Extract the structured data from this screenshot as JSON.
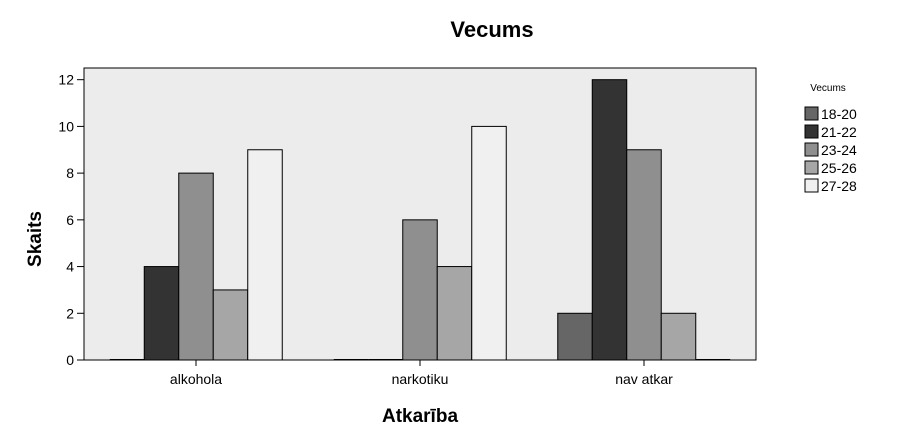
{
  "chart_data": {
    "type": "bar",
    "title": "Vecums",
    "xlabel": "Atkarība",
    "ylabel": "Skaits",
    "categories": [
      "alkohola",
      "narkotiku",
      "nav atkar"
    ],
    "series": [
      {
        "name": "18-20",
        "values": [
          0,
          0,
          2
        ],
        "color": "#666666"
      },
      {
        "name": "21-22",
        "values": [
          4,
          0,
          12
        ],
        "color": "#333333"
      },
      {
        "name": "23-24",
        "values": [
          8,
          6,
          9
        ],
        "color": "#8f8f8f"
      },
      {
        "name": "25-26",
        "values": [
          3,
          4,
          2
        ],
        "color": "#a6a6a6"
      },
      {
        "name": "27-28",
        "values": [
          9,
          10,
          0
        ],
        "color": "#f0f0f0"
      }
    ],
    "ylim": [
      0,
      12.5
    ],
    "yticks": [
      0,
      2,
      4,
      6,
      8,
      10,
      12
    ],
    "legend_title": "Vecums",
    "legend_position": "right",
    "plot_background": "#ececec",
    "grid": false
  }
}
